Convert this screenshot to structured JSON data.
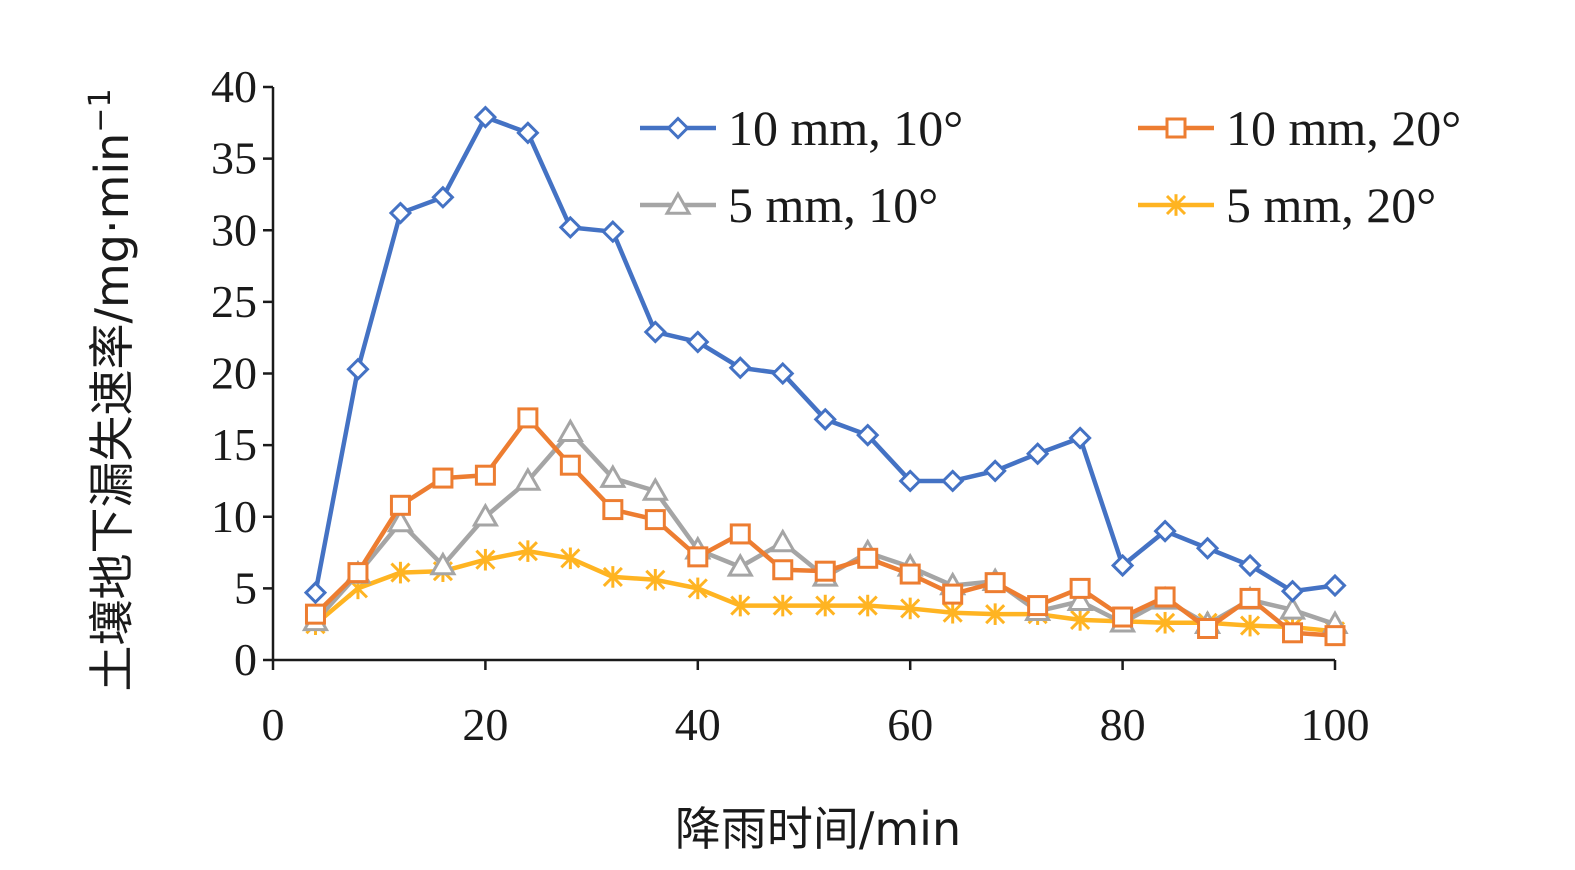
{
  "chart_data": {
    "type": "line",
    "x": [
      4,
      8,
      12,
      16,
      20,
      24,
      28,
      32,
      36,
      40,
      44,
      48,
      52,
      56,
      60,
      64,
      68,
      72,
      76,
      80,
      84,
      88,
      92,
      96,
      100
    ],
    "xlim": [
      0,
      100
    ],
    "ylim": [
      0,
      40
    ],
    "x_ticks": [
      0,
      20,
      40,
      60,
      80,
      100
    ],
    "y_ticks": [
      0,
      5,
      10,
      15,
      20,
      25,
      30,
      35,
      40
    ],
    "xlabel": "降雨时间/min",
    "ylabel": "土壤地下漏失速率/mg·min",
    "ylabel_superscript": "−1",
    "legend_position": "top",
    "grid": false,
    "series": [
      {
        "name": "10 mm, 10°",
        "color": "#4472C4",
        "marker": "diamond",
        "values": [
          4.7,
          20.3,
          31.2,
          32.3,
          37.9,
          36.8,
          30.2,
          29.9,
          22.9,
          22.2,
          20.4,
          20.0,
          16.8,
          15.7,
          12.5,
          12.5,
          13.2,
          14.4,
          15.5,
          6.6,
          9.0,
          7.8,
          6.6,
          4.8,
          5.2
        ]
      },
      {
        "name": "10 mm, 20°",
        "color": "#ED7D31",
        "marker": "square",
        "values": [
          3.2,
          6.1,
          10.8,
          12.7,
          12.9,
          16.9,
          13.6,
          10.5,
          9.8,
          7.2,
          8.8,
          6.3,
          6.2,
          7.1,
          6.0,
          4.6,
          5.4,
          3.8,
          5.0,
          3.0,
          4.4,
          2.2,
          4.3,
          1.9,
          1.7
        ]
      },
      {
        "name": "5 mm, 10°",
        "color": "#A5A5A5",
        "marker": "triangle",
        "values": [
          2.7,
          6.0,
          9.6,
          6.6,
          10.0,
          12.5,
          15.9,
          12.7,
          11.8,
          7.7,
          6.5,
          8.2,
          5.8,
          7.5,
          6.5,
          5.2,
          5.5,
          3.4,
          4.1,
          2.6,
          4.2,
          2.5,
          4.2,
          3.5,
          2.5
        ]
      },
      {
        "name": "5 mm, 20°",
        "color": "#FFB422",
        "marker": "star",
        "values": [
          2.5,
          5.0,
          6.1,
          6.2,
          7.0,
          7.6,
          7.1,
          5.8,
          5.6,
          5.0,
          3.8,
          3.8,
          3.8,
          3.8,
          3.6,
          3.3,
          3.2,
          3.2,
          2.8,
          2.7,
          2.6,
          2.6,
          2.4,
          2.3,
          2.0
        ]
      }
    ]
  }
}
